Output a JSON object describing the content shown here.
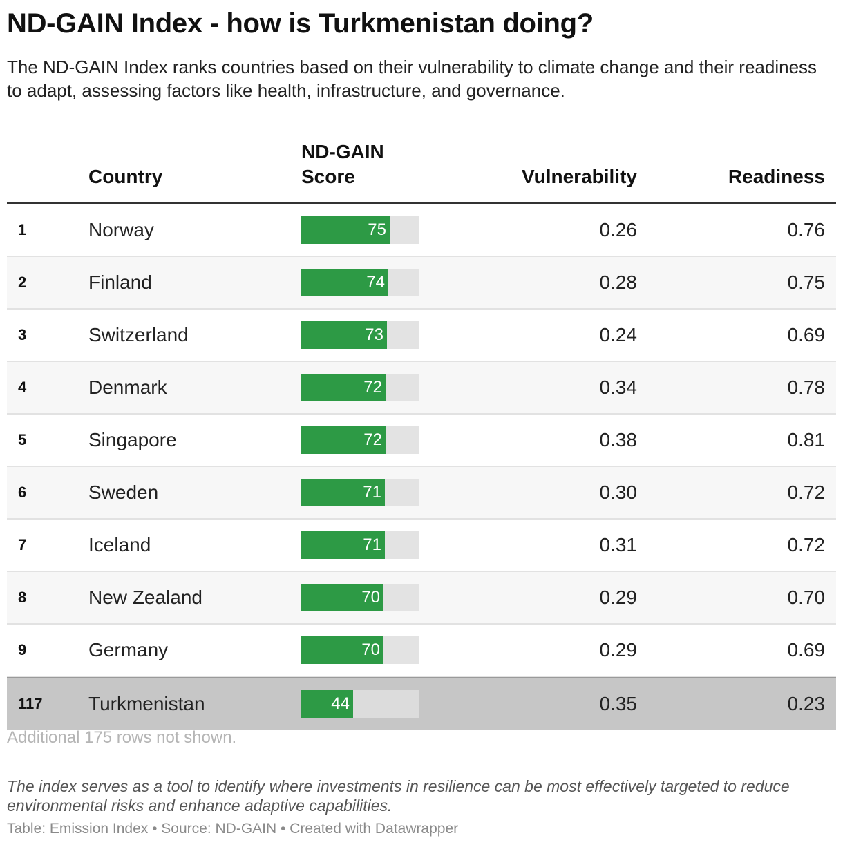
{
  "title": "ND-GAIN Index - how is Turkmenistan doing?",
  "subtitle": "The ND-GAIN Index ranks countries based on their vulnerability to climate change and their readiness to adapt, assessing factors like health, infrastructure, and governance.",
  "headers": {
    "country": "Country",
    "score_line1": "ND-GAIN",
    "score_line2": "Score",
    "vulnerability": "Vulnerability",
    "readiness": "Readiness"
  },
  "colors": {
    "bar": "#2d9a45",
    "bar_track": "#e3e3e3",
    "highlight_row": "#c6c6c6"
  },
  "chart_data": {
    "type": "table",
    "columns": [
      "",
      "Country",
      "ND-GAIN Score",
      "Vulnerability",
      "Readiness"
    ],
    "score_max": 100,
    "rows": [
      {
        "rank": "1",
        "country": "Norway",
        "score": 75,
        "vulnerability": "0.26",
        "readiness": "0.76",
        "highlight": false
      },
      {
        "rank": "2",
        "country": "Finland",
        "score": 74,
        "vulnerability": "0.28",
        "readiness": "0.75",
        "highlight": false
      },
      {
        "rank": "3",
        "country": "Switzerland",
        "score": 73,
        "vulnerability": "0.24",
        "readiness": "0.69",
        "highlight": false
      },
      {
        "rank": "4",
        "country": "Denmark",
        "score": 72,
        "vulnerability": "0.34",
        "readiness": "0.78",
        "highlight": false
      },
      {
        "rank": "5",
        "country": "Singapore",
        "score": 72,
        "vulnerability": "0.38",
        "readiness": "0.81",
        "highlight": false
      },
      {
        "rank": "6",
        "country": "Sweden",
        "score": 71,
        "vulnerability": "0.30",
        "readiness": "0.72",
        "highlight": false
      },
      {
        "rank": "7",
        "country": "Iceland",
        "score": 71,
        "vulnerability": "0.31",
        "readiness": "0.72",
        "highlight": false
      },
      {
        "rank": "8",
        "country": "New Zealand",
        "score": 70,
        "vulnerability": "0.29",
        "readiness": "0.70",
        "highlight": false
      },
      {
        "rank": "9",
        "country": "Germany",
        "score": 70,
        "vulnerability": "0.29",
        "readiness": "0.69",
        "highlight": false
      },
      {
        "rank": "117",
        "country": "Turkmenistan",
        "score": 44,
        "vulnerability": "0.35",
        "readiness": "0.23",
        "highlight": true
      }
    ]
  },
  "more_rows": "Additional 175 rows not shown.",
  "note": "The index serves as a tool to identify where investments in resilience can be most effectively targeted to reduce environmental risks and enhance adaptive capabilities.",
  "footer": "Table: Emission Index • Source: ND-GAIN • Created with Datawrapper"
}
